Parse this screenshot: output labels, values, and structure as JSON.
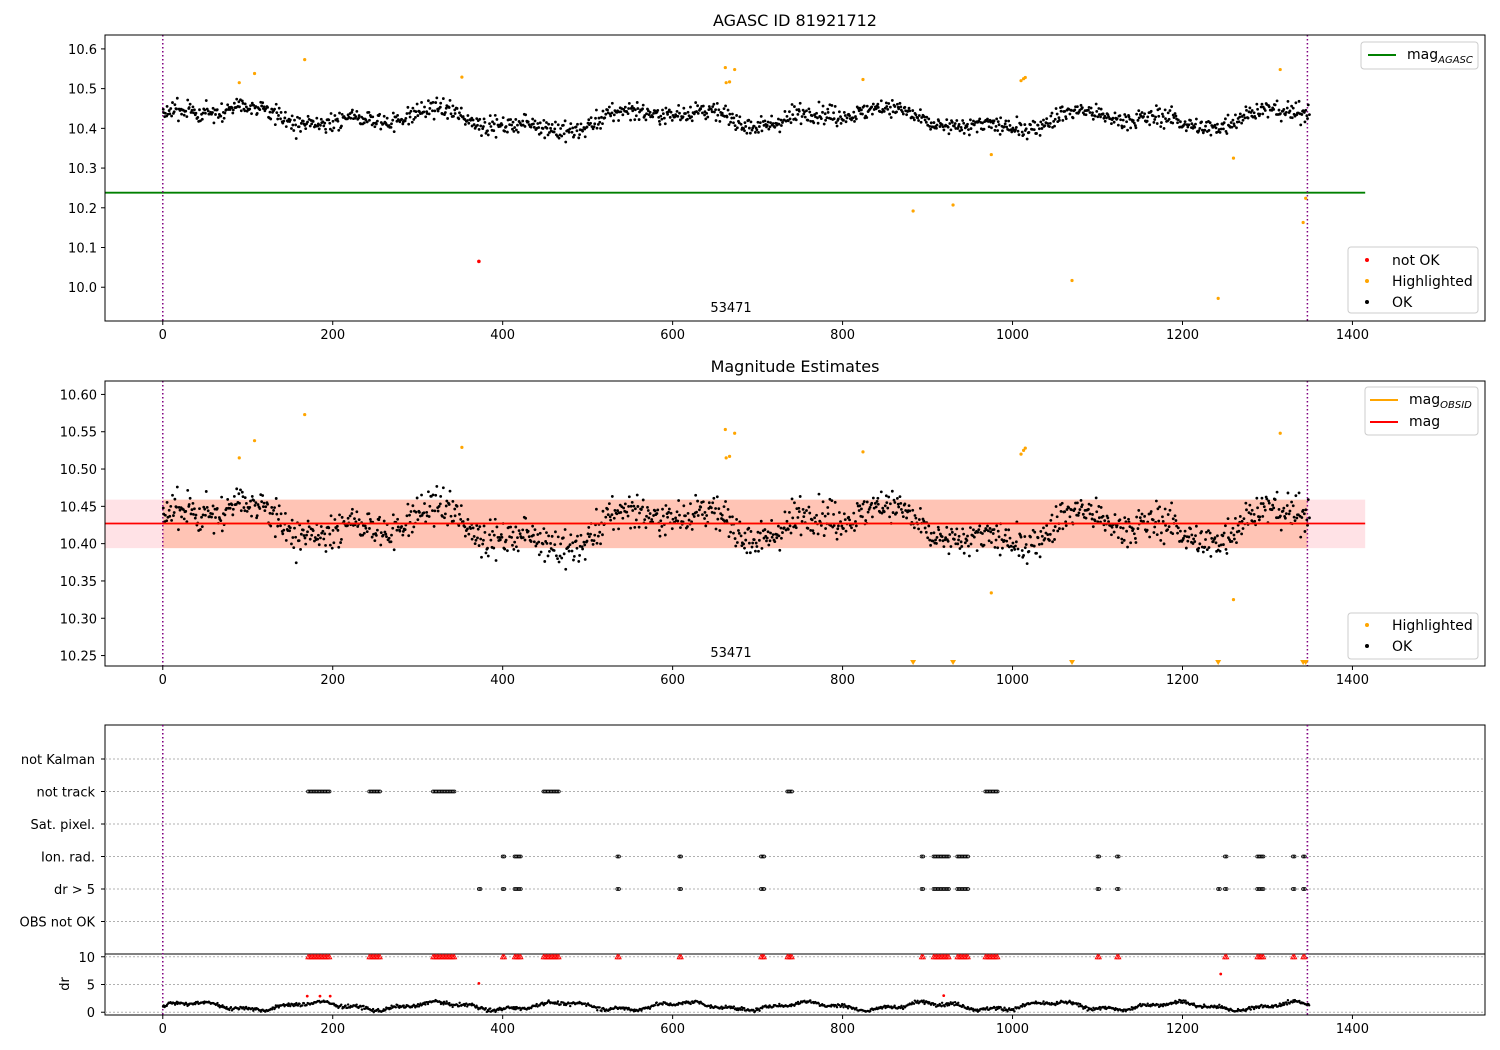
{
  "chart_data": [
    {
      "panel": "top",
      "type": "scatter",
      "title": "AGASC ID 81921712",
      "xlim": [
        -68,
        1556
      ],
      "ylim": [
        9.915,
        10.635
      ],
      "xticks": [
        0,
        200,
        400,
        600,
        800,
        1000,
        1200,
        1400
      ],
      "yticks": [
        10.0,
        10.1,
        10.2,
        10.3,
        10.4,
        10.5,
        10.6
      ],
      "ytick_labels": [
        "10.0",
        "10.1",
        "10.2",
        "10.3",
        "10.4",
        "10.5",
        "10.6"
      ],
      "annotation": "53471",
      "annotation_x": 670,
      "obs_boundaries": [
        0,
        1347
      ],
      "hlines": [
        {
          "name": "mag_AGASC",
          "y": 10.238,
          "xmin": -68,
          "xmax": 1415,
          "color": "#008000"
        }
      ],
      "ok_series": {
        "name": "OK",
        "color": "#000000",
        "base": 10.425,
        "count": 1350
      },
      "highlighted": {
        "name": "Highlighted",
        "color": "#ffa500",
        "x": [
          90,
          108,
          167,
          352,
          662,
          663,
          667,
          673,
          824,
          883,
          930,
          975,
          1010,
          1013,
          1015,
          1070,
          1242,
          1260,
          1315,
          1342,
          1345
        ],
        "y": [
          10.515,
          10.538,
          10.573,
          10.529,
          10.553,
          10.515,
          10.517,
          10.548,
          10.523,
          10.192,
          10.207,
          10.334,
          10.52,
          10.525,
          10.528,
          10.017,
          9.972,
          10.325,
          10.548,
          10.163,
          10.224
        ]
      },
      "not_ok": {
        "name": "not OK",
        "color": "#ff0000",
        "x": [
          372
        ],
        "y": [
          10.065
        ]
      },
      "legend_upper": [
        {
          "label": "mag",
          "sub": "AGASC",
          "color": "#008000"
        }
      ],
      "legend_lower": [
        {
          "label": "not OK",
          "color": "#ff0000"
        },
        {
          "label": "Highlighted",
          "color": "#ffa500"
        },
        {
          "label": "OK",
          "color": "#000000"
        }
      ]
    },
    {
      "panel": "middle",
      "type": "scatter",
      "title": "Magnitude Estimates",
      "xlim": [
        -68,
        1556
      ],
      "ylim": [
        10.236,
        10.618
      ],
      "xticks": [
        0,
        200,
        400,
        600,
        800,
        1000,
        1200,
        1400
      ],
      "yticks": [
        10.25,
        10.3,
        10.35,
        10.4,
        10.45,
        10.5,
        10.55,
        10.6
      ],
      "ytick_labels": [
        "10.25",
        "10.30",
        "10.35",
        "10.40",
        "10.45",
        "10.50",
        "10.55",
        "10.60"
      ],
      "annotation": "53471",
      "annotation_x": 670,
      "obs_boundaries": [
        0,
        1347
      ],
      "band_mag": {
        "y0": 10.394,
        "y1": 10.459,
        "xmin": -68,
        "xmax": 1415,
        "color": "#ffb6c1"
      },
      "band_obsid": {
        "y0": 10.394,
        "y1": 10.459,
        "xmin": 0,
        "xmax": 1347,
        "color": "#ffa07a"
      },
      "hlines": [
        {
          "name": "mag",
          "y": 10.427,
          "xmin": -68,
          "xmax": 1415,
          "color": "#ff0000"
        },
        {
          "name": "mag_OBSID",
          "y": 10.427,
          "xmin": 0,
          "xmax": 1347,
          "color": "#ffa500"
        }
      ],
      "below_range_markers": [
        883,
        930,
        1070,
        1242,
        1342,
        1345
      ],
      "legend_upper": [
        {
          "label": "mag",
          "sub": "OBSID",
          "color": "#ffa500"
        },
        {
          "label": "mag",
          "sub": "",
          "color": "#ff0000"
        }
      ],
      "legend_lower": [
        {
          "label": "Highlighted",
          "color": "#ffa500"
        },
        {
          "label": "OK",
          "color": "#000000"
        }
      ]
    },
    {
      "panel": "flags",
      "type": "scatter",
      "xlim": [
        -68,
        1556
      ],
      "categories": [
        "not Kalman",
        "not track",
        "Sat. pixel.",
        "Ion. rad.",
        "dr > 5",
        "OBS not OK"
      ],
      "flags": {
        "not track": [
          [
            171,
            197
          ],
          [
            243,
            256
          ],
          [
            318,
            345
          ],
          [
            448,
            467
          ],
          [
            735,
            741
          ],
          [
            968,
            983
          ]
        ],
        "Ion. rad.": [
          [
            400,
            402
          ],
          [
            414,
            422
          ],
          [
            535,
            537
          ],
          [
            608,
            610
          ],
          [
            704,
            708
          ],
          [
            893,
            895
          ],
          [
            907,
            925
          ],
          [
            935,
            948
          ],
          [
            1100,
            1102
          ],
          [
            1123,
            1125
          ],
          [
            1250,
            1252
          ],
          [
            1288,
            1296
          ],
          [
            1330,
            1332
          ],
          [
            1342,
            1344
          ]
        ],
        "dr > 5": [
          [
            372,
            374
          ],
          [
            400,
            402
          ],
          [
            414,
            422
          ],
          [
            535,
            537
          ],
          [
            608,
            610
          ],
          [
            704,
            708
          ],
          [
            893,
            895
          ],
          [
            907,
            925
          ],
          [
            935,
            948
          ],
          [
            1100,
            1102
          ],
          [
            1123,
            1125
          ],
          [
            1242,
            1244
          ],
          [
            1250,
            1252
          ],
          [
            1288,
            1296
          ],
          [
            1330,
            1332
          ],
          [
            1342,
            1344
          ]
        ]
      },
      "obs_boundaries": [
        0,
        1347
      ]
    },
    {
      "panel": "dr",
      "type": "scatter",
      "xlim": [
        -68,
        1556
      ],
      "ylim": [
        -0.5,
        10.5
      ],
      "ylabel": "dr",
      "xticks": [
        0,
        200,
        400,
        600,
        800,
        1000,
        1200,
        1400
      ],
      "yticks": [
        0,
        5,
        10
      ],
      "ytick_labels": [
        "0",
        "5",
        "10"
      ],
      "capped_value": 10,
      "isolated_points": [
        {
          "x": 372,
          "y": 5.2
        },
        {
          "x": 1245,
          "y": 6.9
        },
        {
          "x": 919,
          "y": 3.0
        },
        {
          "x": 170,
          "y": 2.9
        },
        {
          "x": 185,
          "y": 2.9
        },
        {
          "x": 197,
          "y": 2.9
        }
      ],
      "obs_boundaries": [
        0,
        1347
      ]
    }
  ]
}
